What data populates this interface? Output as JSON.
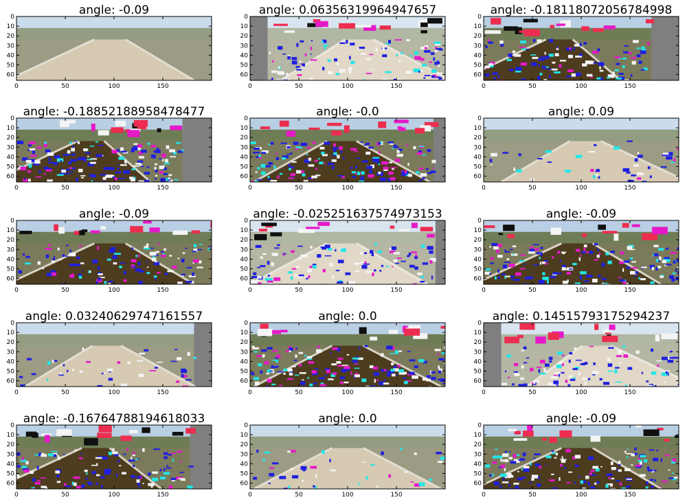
{
  "chart_data": {
    "type": "image-grid",
    "rows": 5,
    "cols": 3,
    "image_width": 200,
    "image_height": 66,
    "xticks": [
      0,
      50,
      100,
      150
    ],
    "yticks": [
      0,
      10,
      20,
      30,
      40,
      50,
      60
    ],
    "panels": [
      {
        "title": "angle: -0.09",
        "angle": -0.09,
        "style": "plain",
        "pad_left": 0,
        "pad_right": 0
      },
      {
        "title": "angle: 0.06356319964947657",
        "angle": 0.06356319964947657,
        "style": "bright",
        "pad_left": 18,
        "pad_right": 0
      },
      {
        "title": "angle: -0.18118072056784998",
        "angle": -0.18118072056784998,
        "style": "dark",
        "pad_left": 0,
        "pad_right": 28
      },
      {
        "title": "angle: -0.18852188958478477",
        "angle": -0.18852188958478477,
        "style": "saturated",
        "pad_left": 0,
        "pad_right": 30
      },
      {
        "title": "angle: -0.0",
        "angle": -0.0,
        "style": "saturated",
        "pad_left": 0,
        "pad_right": 12
      },
      {
        "title": "angle: 0.09",
        "angle": 0.09,
        "style": "plain",
        "pad_left": 0,
        "pad_right": 0
      },
      {
        "title": "angle: -0.09",
        "angle": -0.09,
        "style": "dark",
        "pad_left": 0,
        "pad_right": 0
      },
      {
        "title": "angle: -0.025251637574973153",
        "angle": -0.025251637574973153,
        "style": "bright",
        "pad_left": 0,
        "pad_right": 10
      },
      {
        "title": "angle: -0.09",
        "angle": -0.09,
        "style": "saturated",
        "pad_left": 0,
        "pad_right": 0
      },
      {
        "title": "angle: 0.03240629747161557",
        "angle": 0.03240629747161557,
        "style": "plain",
        "pad_left": 0,
        "pad_right": 18
      },
      {
        "title": "angle: 0.0",
        "angle": 0.0,
        "style": "saturated",
        "pad_left": 0,
        "pad_right": 0
      },
      {
        "title": "angle: 0.14515793175294237",
        "angle": 0.14515793175294237,
        "style": "bright",
        "pad_left": 18,
        "pad_right": 0
      },
      {
        "title": "angle: -0.16764788194618033",
        "angle": -0.16764788194618033,
        "style": "dark",
        "pad_left": 0,
        "pad_right": 22
      },
      {
        "title": "angle: 0.0",
        "angle": 0.0,
        "style": "plain",
        "pad_left": 0,
        "pad_right": 0
      },
      {
        "title": "angle: -0.09",
        "angle": -0.09,
        "style": "saturated",
        "pad_left": 0,
        "pad_right": 0
      }
    ]
  },
  "colors": {
    "sky": "#b9cfe4",
    "trees": "#6f7d57",
    "grass": "#7b7a5a",
    "road": "#c9b89a",
    "road_dark": "#4e3c1f",
    "pad": "#7f7f7f",
    "noise_blue": "#1f1fe0",
    "noise_cyan": "#22e6e6",
    "noise_magenta": "#e619c8",
    "noise_red": "#ec2d4f",
    "noise_white": "#f4f4f4"
  }
}
